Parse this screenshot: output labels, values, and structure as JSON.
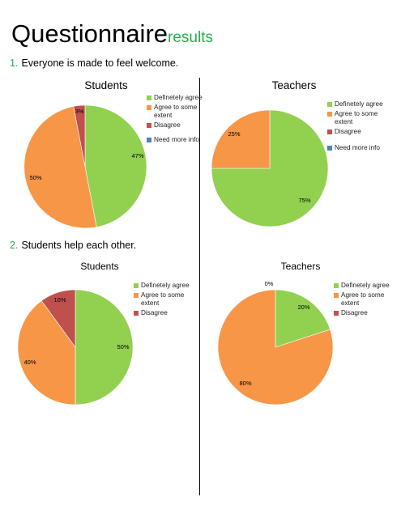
{
  "page": {
    "title_main": "Questionnaire",
    "title_sub": "results"
  },
  "questions": [
    {
      "number": "1.",
      "text": "Everyone is made to feel welcome."
    },
    {
      "number": "2.",
      "text": "Students help each other."
    }
  ],
  "colors": {
    "definetely_agree": "#92d050",
    "agree_to_some_extent": "#f79646",
    "disagree": "#c0504d",
    "need_more_info": "#4f81bd"
  },
  "chart_data": [
    {
      "type": "pie",
      "title": "Students",
      "question": "Everyone is made to feel welcome.",
      "legend": [
        "Definetely agree",
        "Agree to some extent",
        "Disagree",
        "Need more info"
      ],
      "slices": [
        {
          "name": "Definetely agree",
          "value": 47,
          "label": "47%",
          "color": "#92d050"
        },
        {
          "name": "Agree to some extent",
          "value": 50,
          "label": "50%",
          "color": "#f79646"
        },
        {
          "name": "Disagree",
          "value": 3,
          "label": "3%",
          "color": "#c0504d"
        },
        {
          "name": "Need more info",
          "value": 0,
          "label": "",
          "color": "#4f81bd"
        }
      ],
      "legend_position": "right"
    },
    {
      "type": "pie",
      "title": "Teachers",
      "question": "Everyone is made to feel welcome.",
      "legend": [
        "Definetely agree",
        "Agree to some extent",
        "Disagree",
        "Need more info"
      ],
      "slices": [
        {
          "name": "Definetely agree",
          "value": 75,
          "label": "75%",
          "color": "#92d050"
        },
        {
          "name": "Agree to some extent",
          "value": 25,
          "label": "25%",
          "color": "#f79646"
        },
        {
          "name": "Disagree",
          "value": 0,
          "label": "",
          "color": "#c0504d"
        },
        {
          "name": "Need more info",
          "value": 0,
          "label": "",
          "color": "#4f81bd"
        }
      ],
      "legend_position": "right"
    },
    {
      "type": "pie",
      "title": "Students",
      "question": "Students help each other.",
      "legend": [
        "Definetely agree",
        "Agree to some extent",
        "Disagree"
      ],
      "slices": [
        {
          "name": "Definetely agree",
          "value": 50,
          "label": "50%",
          "color": "#92d050"
        },
        {
          "name": "Agree to some extent",
          "value": 40,
          "label": "40%",
          "color": "#f79646"
        },
        {
          "name": "Disagree",
          "value": 10,
          "label": "10%",
          "color": "#c0504d"
        }
      ],
      "legend_position": "right"
    },
    {
      "type": "pie",
      "title": "Teachers",
      "question": "Students help each other.",
      "legend": [
        "Definetely agree",
        "Agree to some extent",
        "Disagree"
      ],
      "slices": [
        {
          "name": "Definetely agree",
          "value": 20,
          "label": "20%",
          "color": "#92d050"
        },
        {
          "name": "Agree to some extent",
          "value": 80,
          "label": "80%",
          "color": "#f79646"
        },
        {
          "name": "Disagree",
          "value": 0,
          "label": "0%",
          "color": "#c0504d"
        }
      ],
      "legend_position": "right"
    }
  ]
}
